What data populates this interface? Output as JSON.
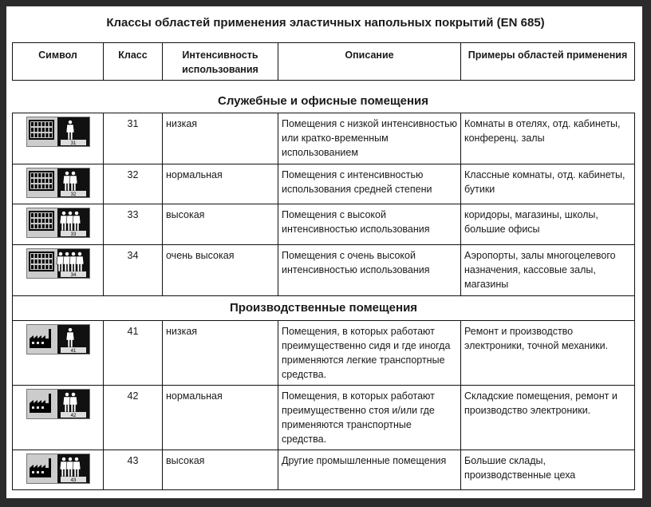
{
  "title": "Классы областей применения эластичных напольных покрытий (EN 685)",
  "columns": [
    "Символ",
    "Класс",
    "Интенсивность использования",
    "Описание",
    "Примеры областей применения"
  ],
  "sections": [
    {
      "title": "Служебные и офисные помещения",
      "icon": "office-building-icon",
      "rows": [
        {
          "class": "31",
          "people": 1,
          "intensity": "низкая",
          "description": "Помещения с низкой интенсивностью или кратко-временным использованием",
          "examples": "Комнаты в отелях, отд. кабинеты, конференц. залы"
        },
        {
          "class": "32",
          "people": 2,
          "intensity": "нормальная",
          "description": "Помещения с интенсивностью использования средней степени",
          "examples": "Классные комнаты, отд. кабинеты, бутики"
        },
        {
          "class": "33",
          "people": 3,
          "intensity": "высокая",
          "description": "Помещения с высокой интенсивностью использования",
          "examples": "коридоры, магазины, школы, большие офисы"
        },
        {
          "class": "34",
          "people": 4,
          "intensity": "очень высокая",
          "description": "Помещения с очень высокой интенсивностью использования",
          "examples": "Аэропорты, залы многоцелевого назначения, кассовые залы, магазины"
        }
      ]
    },
    {
      "title": "Производственные помещения",
      "icon": "factory-icon",
      "rows": [
        {
          "class": "41",
          "people": 1,
          "intensity": "низкая",
          "description": "Помещения, в которых работают преимущественно сидя и где иногда применяются легкие транспортные средства.",
          "examples": "Ремонт и производство электроники, точной механики."
        },
        {
          "class": "42",
          "people": 2,
          "intensity": "нормальная",
          "description": "Помещения, в которых работают преимущественно стоя и/или где применяются транспортные средства.",
          "examples": "Складские помещения, ремонт и производство электроники."
        },
        {
          "class": "43",
          "people": 3,
          "intensity": "высокая",
          "description": "Другие промышленные помещения",
          "examples": "Большие склады, производственные цеха"
        }
      ]
    }
  ]
}
